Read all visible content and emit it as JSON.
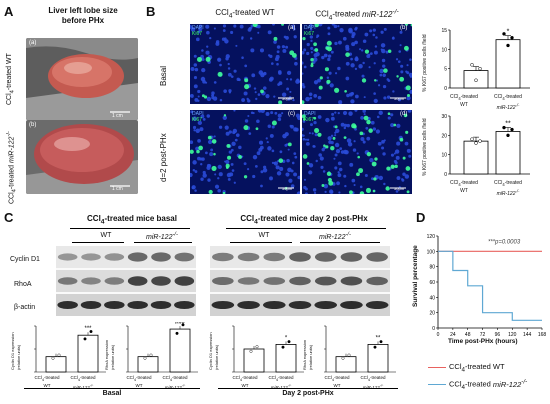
{
  "panelA": {
    "label": "A",
    "title": "Liver left lobe size before PHx",
    "row1": "CCl4-treated WT",
    "row2": "CCl4-treated miR-122-/-",
    "scalebar": "1 cm",
    "inset1": "(a)",
    "inset2": "(b)"
  },
  "panelB": {
    "label": "B",
    "col1": "CCl4-treated WT",
    "col2": "CCl4-treated miR-122-/-",
    "row1": "Basal",
    "row2": "d=2 post-PHx",
    "dapi": "DAPI",
    "ki67": "Ki67",
    "scalebar": "50μm",
    "insets": [
      "(a)",
      "(b)",
      "(c)",
      "(d)"
    ],
    "ylabel": "% Ki67 positive cells /field",
    "sig_top": "*",
    "sig_bottom": "**",
    "xcat1_a": "CCl4-treated",
    "xcat1_b": "WT",
    "xcat2_a": "CCl4-treated",
    "xcat2_b": "miR-122-/-"
  },
  "panelC": {
    "label": "C",
    "title_left": "CCl4-treated mice basal",
    "title_right": "CCl4-treated mice day 2 post-PHx",
    "wt": "WT",
    "ko": "miR-122-/-",
    "row1": "Cyclin D1",
    "row2": "RhoA",
    "row3": "β-actin",
    "ylabel_cyc": "Cyclin D1 expression (relative units)",
    "ylabel_rho": "RhoA expression (relative units)",
    "sig1": "***",
    "sig2": "###",
    "sig3": "*",
    "sig4": "**",
    "group_basal": "Basal",
    "group_phx": "Day 2 post-PHx",
    "xcat1_a": "CCl4-treated",
    "xcat1_b": "WT",
    "xcat2_a": "CCl4-treated",
    "xcat2_b": "miR-122-/-"
  },
  "panelD": {
    "label": "D",
    "pvalue": "***p=0.0003",
    "ylabel": "Survival percentage",
    "xlabel": "Time post-PHx (hours)",
    "legend_wt": "CCl4-treated WT",
    "legend_ko": "CCl4-treated miR-122-/-",
    "color_wt": "#e8625f",
    "color_ko": "#5fa8d3"
  },
  "chart_data": [
    {
      "type": "bar",
      "panel": "B-top",
      "categories": [
        "CCl4-treated WT",
        "CCl4-treated miR-122-/-"
      ],
      "values": [
        4.5,
        12.5
      ],
      "ylim": [
        0,
        15
      ],
      "yticks": [
        0,
        5,
        10,
        15
      ]
    },
    {
      "type": "bar",
      "panel": "B-bottom",
      "categories": [
        "CCl4-treated WT",
        "CCl4-treated miR-122-/-"
      ],
      "values": [
        17,
        22
      ],
      "ylim": [
        0,
        30
      ],
      "yticks": [
        0,
        10,
        20,
        30
      ]
    },
    {
      "type": "line",
      "panel": "D",
      "xlabel": "Time post-PHx (hours)",
      "ylabel": "Survival percentage",
      "xlim": [
        0,
        168
      ],
      "ylim": [
        0,
        120
      ],
      "xticks": [
        0,
        24,
        48,
        72,
        96,
        120,
        144,
        168
      ],
      "yticks": [
        0,
        20,
        40,
        60,
        80,
        100,
        120
      ],
      "series": [
        {
          "name": "CCl4-treated WT",
          "x": [
            0,
            168
          ],
          "y": [
            100,
            100
          ]
        },
        {
          "name": "CCl4-treated miR-122-/-",
          "x": [
            0,
            24,
            24,
            48,
            48,
            72,
            72,
            120,
            120,
            168
          ],
          "y": [
            100,
            100,
            75,
            75,
            55,
            55,
            20,
            20,
            10,
            10
          ]
        }
      ]
    }
  ]
}
